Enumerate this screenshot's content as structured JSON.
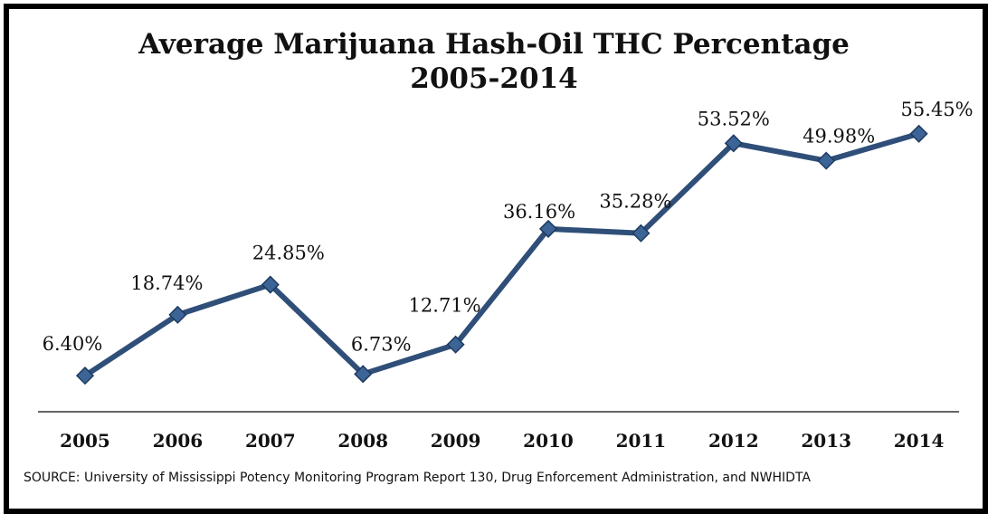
{
  "title_line1": "Average Marijuana Hash-Oil THC Percentage",
  "title_line2": "2005-2014",
  "source": "SOURCE: University of Mississippi Potency Monitoring Program Report 130, Drug Enforcement Administration, and NWHIDTA",
  "colors": {
    "line": "#2f4f79",
    "marker": "#3c6496",
    "marker_stroke": "#1e3a5f",
    "axis": "#333333"
  },
  "chart_data": {
    "type": "line",
    "title": "Average Marijuana Hash-Oil THC Percentage 2005-2014",
    "xlabel": "",
    "ylabel": "",
    "categories": [
      "2005",
      "2006",
      "2007",
      "2008",
      "2009",
      "2010",
      "2011",
      "2012",
      "2013",
      "2014"
    ],
    "values": [
      6.4,
      18.74,
      24.85,
      6.73,
      12.71,
      36.16,
      35.28,
      53.52,
      49.98,
      55.45
    ],
    "data_labels": [
      "6.40%",
      "18.74%",
      "24.85%",
      "6.73%",
      "12.71%",
      "36.16%",
      "35.28%",
      "53.52%",
      "49.98%",
      "55.45%"
    ],
    "grid": false,
    "legend": "none",
    "marker": "diamond"
  }
}
